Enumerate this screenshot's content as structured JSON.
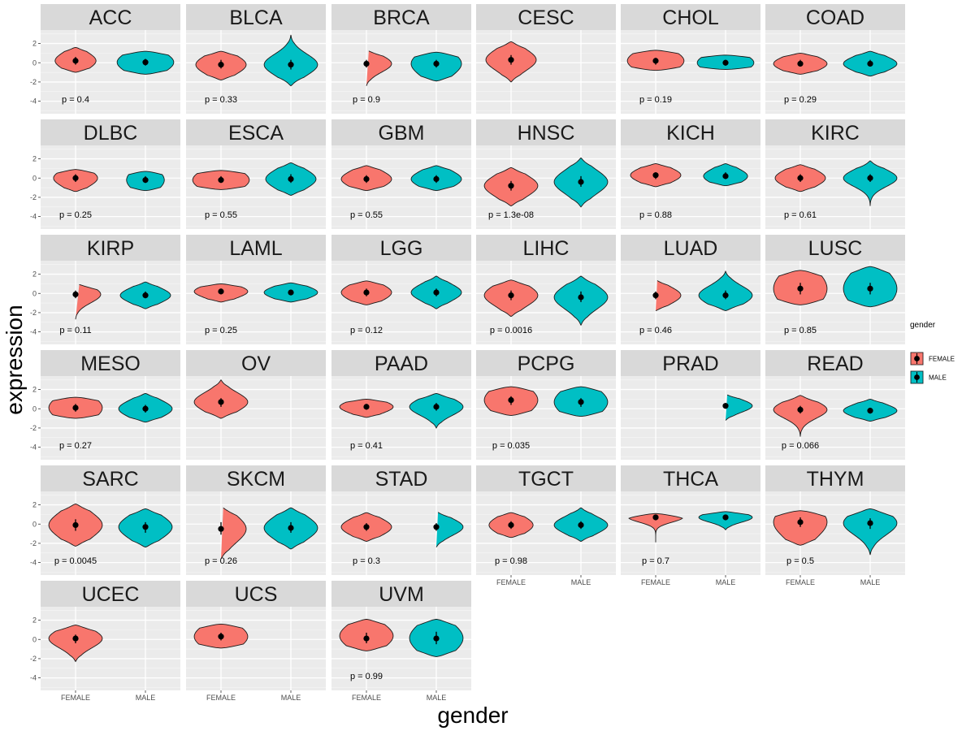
{
  "chart_data": {
    "type": "violin",
    "xlabel": "gender",
    "ylabel": "expression",
    "categories": [
      "FEMALE",
      "MALE"
    ],
    "ylim": [
      -5.3,
      3.4
    ],
    "yticks": [
      -4,
      -2,
      0,
      2
    ],
    "ytick_labels": [
      "-4",
      "-2",
      "0",
      "2"
    ],
    "legend": {
      "title": "gender",
      "position": "right",
      "items": [
        {
          "label": "FEMALE",
          "color": "#F8766D"
        },
        {
          "label": "MALE",
          "color": "#00BFC4"
        }
      ]
    },
    "panels": [
      {
        "name": "ACC",
        "p": "p = 0.4",
        "FEMALE": {
          "lo": -1.0,
          "hi": 1.6,
          "med": 0.2,
          "q1": -0.2,
          "q3": 0.6,
          "w": 0.65,
          "shape": "normal"
        },
        "MALE": {
          "lo": -1.2,
          "hi": 1.2,
          "med": 0.05,
          "q1": -0.3,
          "q3": 0.4,
          "w": 0.9,
          "shape": "wide"
        }
      },
      {
        "name": "BLCA",
        "p": "p = 0.33",
        "FEMALE": {
          "lo": -1.8,
          "hi": 1.2,
          "med": -0.2,
          "q1": -0.6,
          "q3": 0.3,
          "w": 0.8,
          "shape": "normal"
        },
        "MALE": {
          "lo": -2.4,
          "hi": 2.9,
          "med": -0.2,
          "q1": -0.7,
          "q3": 0.3,
          "w": 0.85,
          "shape": "normal"
        }
      },
      {
        "name": "BRCA",
        "p": "p = 0.9",
        "FEMALE": {
          "lo": -2.4,
          "hi": 1.3,
          "med": -0.1,
          "q1": -0.5,
          "q3": 0.3,
          "w": 0.8,
          "shape": "normal"
        },
        "MALE": {
          "lo": -1.9,
          "hi": 1.1,
          "med": -0.1,
          "q1": -0.5,
          "q3": 0.3,
          "w": 0.8,
          "shape": "wide"
        }
      },
      {
        "name": "CESC",
        "p": "",
        "FEMALE": {
          "lo": -2.0,
          "hi": 2.2,
          "med": 0.3,
          "q1": -0.2,
          "q3": 0.8,
          "w": 0.8,
          "shape": "normal"
        }
      },
      {
        "name": "CHOL",
        "p": "p = 0.19",
        "FEMALE": {
          "lo": -0.8,
          "hi": 1.3,
          "med": 0.2,
          "q1": -0.2,
          "q3": 0.5,
          "w": 0.9,
          "shape": "wide"
        },
        "MALE": {
          "lo": -0.7,
          "hi": 0.8,
          "med": 0.0,
          "q1": -0.3,
          "q3": 0.3,
          "w": 0.9,
          "shape": "wide"
        }
      },
      {
        "name": "COAD",
        "p": "p = 0.29",
        "FEMALE": {
          "lo": -1.2,
          "hi": 1.0,
          "med": -0.1,
          "q1": -0.4,
          "q3": 0.3,
          "w": 0.85,
          "shape": "normal"
        },
        "MALE": {
          "lo": -1.4,
          "hi": 1.2,
          "med": -0.1,
          "q1": -0.4,
          "q3": 0.3,
          "w": 0.85,
          "shape": "normal"
        }
      },
      {
        "name": "DLBC",
        "p": "p = 0.25",
        "FEMALE": {
          "lo": -1.4,
          "hi": 0.9,
          "med": 0.0,
          "q1": -0.4,
          "q3": 0.4,
          "w": 0.7,
          "shape": "normal"
        },
        "MALE": {
          "lo": -1.3,
          "hi": 0.7,
          "med": -0.2,
          "q1": -0.5,
          "q3": 0.2,
          "w": 0.6,
          "shape": "wide"
        }
      },
      {
        "name": "ESCA",
        "p": "p = 0.55",
        "FEMALE": {
          "lo": -1.2,
          "hi": 0.8,
          "med": -0.2,
          "q1": -0.5,
          "q3": 0.2,
          "w": 0.9,
          "shape": "wide"
        },
        "MALE": {
          "lo": -1.8,
          "hi": 1.6,
          "med": -0.1,
          "q1": -0.5,
          "q3": 0.4,
          "w": 0.8,
          "shape": "normal"
        }
      },
      {
        "name": "GBM",
        "p": "p = 0.55",
        "FEMALE": {
          "lo": -1.3,
          "hi": 1.3,
          "med": -0.1,
          "q1": -0.5,
          "q3": 0.3,
          "w": 0.8,
          "shape": "normal"
        },
        "MALE": {
          "lo": -1.3,
          "hi": 1.3,
          "med": -0.1,
          "q1": -0.5,
          "q3": 0.3,
          "w": 0.8,
          "shape": "normal"
        }
      },
      {
        "name": "HNSC",
        "p": "p = 1.3e-08",
        "FEMALE": {
          "lo": -2.9,
          "hi": 1.1,
          "med": -0.8,
          "q1": -1.3,
          "q3": -0.3,
          "w": 0.85,
          "shape": "normal"
        },
        "MALE": {
          "lo": -3.0,
          "hi": 2.1,
          "med": -0.4,
          "q1": -0.9,
          "q3": 0.2,
          "w": 0.85,
          "shape": "normal"
        }
      },
      {
        "name": "KICH",
        "p": "p = 0.88",
        "FEMALE": {
          "lo": -0.9,
          "hi": 1.5,
          "med": 0.3,
          "q1": -0.1,
          "q3": 0.6,
          "w": 0.8,
          "shape": "normal"
        },
        "MALE": {
          "lo": -0.8,
          "hi": 1.5,
          "med": 0.2,
          "q1": -0.1,
          "q3": 0.6,
          "w": 0.7,
          "shape": "normal"
        }
      },
      {
        "name": "KIRC",
        "p": "p = 0.61",
        "FEMALE": {
          "lo": -1.4,
          "hi": 1.4,
          "med": 0.0,
          "q1": -0.4,
          "q3": 0.4,
          "w": 0.8,
          "shape": "normal"
        },
        "MALE": {
          "lo": -2.9,
          "hi": 1.8,
          "med": 0.0,
          "q1": -0.4,
          "q3": 0.4,
          "w": 0.85,
          "shape": "normal"
        }
      },
      {
        "name": "KIRP",
        "p": "p = 0.11",
        "FEMALE": {
          "lo": -2.7,
          "hi": 1.0,
          "med": -0.1,
          "q1": -0.5,
          "q3": 0.3,
          "w": 0.8,
          "shape": "normal"
        },
        "MALE": {
          "lo": -1.6,
          "hi": 1.2,
          "med": -0.2,
          "q1": -0.5,
          "q3": 0.2,
          "w": 0.8,
          "shape": "normal"
        }
      },
      {
        "name": "LAML",
        "p": "p = 0.25",
        "FEMALE": {
          "lo": -0.9,
          "hi": 1.0,
          "med": 0.2,
          "q1": -0.1,
          "q3": 0.5,
          "w": 0.85,
          "shape": "normal"
        },
        "MALE": {
          "lo": -0.9,
          "hi": 1.1,
          "med": 0.1,
          "q1": -0.2,
          "q3": 0.4,
          "w": 0.85,
          "shape": "normal"
        }
      },
      {
        "name": "LGG",
        "p": "p = 0.12",
        "FEMALE": {
          "lo": -1.2,
          "hi": 1.3,
          "med": 0.1,
          "q1": -0.3,
          "q3": 0.5,
          "w": 0.8,
          "shape": "normal"
        },
        "MALE": {
          "lo": -1.6,
          "hi": 1.8,
          "med": 0.1,
          "q1": -0.3,
          "q3": 0.5,
          "w": 0.8,
          "shape": "normal"
        }
      },
      {
        "name": "LIHC",
        "p": "p = 0.0016",
        "FEMALE": {
          "lo": -2.4,
          "hi": 1.4,
          "med": -0.2,
          "q1": -0.7,
          "q3": 0.3,
          "w": 0.85,
          "shape": "normal"
        },
        "MALE": {
          "lo": -3.3,
          "hi": 1.8,
          "med": -0.4,
          "q1": -0.9,
          "q3": 0.2,
          "w": 0.85,
          "shape": "normal"
        }
      },
      {
        "name": "LUAD",
        "p": "p = 0.46",
        "FEMALE": {
          "lo": -1.8,
          "hi": 1.4,
          "med": -0.2,
          "q1": -0.6,
          "q3": 0.2,
          "w": 0.8,
          "shape": "normal"
        },
        "MALE": {
          "lo": -1.8,
          "hi": 2.3,
          "med": -0.2,
          "q1": -0.6,
          "q3": 0.3,
          "w": 0.85,
          "shape": "normal"
        }
      },
      {
        "name": "LUSC",
        "p": "p = 0.85",
        "FEMALE": {
          "lo": -1.2,
          "hi": 2.4,
          "med": 0.5,
          "q1": -0.1,
          "q3": 1.1,
          "w": 0.85,
          "shape": "wide"
        },
        "MALE": {
          "lo": -1.4,
          "hi": 2.8,
          "med": 0.5,
          "q1": -0.1,
          "q3": 1.1,
          "w": 0.85,
          "shape": "wide"
        }
      },
      {
        "name": "MESO",
        "p": "p = 0.27",
        "FEMALE": {
          "lo": -1.0,
          "hi": 1.2,
          "med": 0.1,
          "q1": -0.3,
          "q3": 0.5,
          "w": 0.85,
          "shape": "wide"
        },
        "MALE": {
          "lo": -1.4,
          "hi": 1.6,
          "med": 0.0,
          "q1": -0.4,
          "q3": 0.4,
          "w": 0.85,
          "shape": "normal"
        }
      },
      {
        "name": "OV",
        "p": "",
        "FEMALE": {
          "lo": -1.0,
          "hi": 3.0,
          "med": 0.7,
          "q1": 0.2,
          "q3": 1.1,
          "w": 0.85,
          "shape": "normal"
        }
      },
      {
        "name": "PAAD",
        "p": "p = 0.41",
        "FEMALE": {
          "lo": -0.9,
          "hi": 1.0,
          "med": 0.2,
          "q1": -0.1,
          "q3": 0.5,
          "w": 0.85,
          "shape": "normal"
        },
        "MALE": {
          "lo": -2.0,
          "hi": 1.6,
          "med": 0.2,
          "q1": -0.2,
          "q3": 0.6,
          "w": 0.85,
          "shape": "normal"
        }
      },
      {
        "name": "PCPG",
        "p": "p = 0.035",
        "FEMALE": {
          "lo": -0.7,
          "hi": 2.3,
          "med": 0.9,
          "q1": 0.4,
          "q3": 1.3,
          "w": 0.85,
          "shape": "wide"
        },
        "MALE": {
          "lo": -0.8,
          "hi": 2.3,
          "med": 0.7,
          "q1": 0.2,
          "q3": 1.1,
          "w": 0.85,
          "shape": "wide"
        }
      },
      {
        "name": "PRAD",
        "p": "",
        "MALE": {
          "lo": -1.2,
          "hi": 1.5,
          "med": 0.3,
          "q1": 0.0,
          "q3": 0.6,
          "w": 0.85,
          "shape": "normal"
        }
      },
      {
        "name": "READ",
        "p": "p = 0.066",
        "FEMALE": {
          "lo": -2.9,
          "hi": 1.4,
          "med": -0.1,
          "q1": -0.5,
          "q3": 0.3,
          "w": 0.85,
          "shape": "normal"
        },
        "MALE": {
          "lo": -1.3,
          "hi": 1.0,
          "med": -0.2,
          "q1": -0.5,
          "q3": 0.1,
          "w": 0.85,
          "shape": "normal"
        }
      },
      {
        "name": "SARC",
        "p": "p = 0.0045",
        "FEMALE": {
          "lo": -2.3,
          "hi": 2.1,
          "med": -0.1,
          "q1": -0.7,
          "q3": 0.5,
          "w": 0.85,
          "shape": "normal"
        },
        "MALE": {
          "lo": -2.4,
          "hi": 1.6,
          "med": -0.3,
          "q1": -0.9,
          "q3": 0.2,
          "w": 0.85,
          "shape": "normal"
        }
      },
      {
        "name": "SKCM",
        "p": "p = 0.26",
        "FEMALE": {
          "lo": -3.6,
          "hi": 1.8,
          "med": -0.5,
          "q1": -1.1,
          "q3": 0.2,
          "w": 0.8,
          "shape": "normal"
        },
        "MALE": {
          "lo": -2.6,
          "hi": 1.7,
          "med": -0.4,
          "q1": -0.9,
          "q3": 0.2,
          "w": 0.85,
          "shape": "normal"
        }
      },
      {
        "name": "STAD",
        "p": "p = 0.3",
        "FEMALE": {
          "lo": -1.8,
          "hi": 1.2,
          "med": -0.3,
          "q1": -0.7,
          "q3": 0.1,
          "w": 0.8,
          "shape": "normal"
        },
        "MALE": {
          "lo": -2.4,
          "hi": 1.3,
          "med": -0.3,
          "q1": -0.7,
          "q3": 0.1,
          "w": 0.85,
          "shape": "normal"
        }
      },
      {
        "name": "TGCT",
        "p": "p = 0.98",
        "FEMALE": {
          "lo": -1.4,
          "hi": 1.2,
          "med": -0.1,
          "q1": -0.5,
          "q3": 0.3,
          "w": 0.7,
          "shape": "normal"
        },
        "MALE": {
          "lo": -1.8,
          "hi": 1.7,
          "med": -0.1,
          "q1": -0.5,
          "q3": 0.3,
          "w": 0.85,
          "shape": "normal"
        }
      },
      {
        "name": "THCA",
        "p": "p = 0.7",
        "FEMALE": {
          "lo": -1.9,
          "hi": 1.1,
          "med": 0.7,
          "q1": 0.4,
          "q3": 0.9,
          "w": 0.85,
          "shape": "top"
        },
        "MALE": {
          "lo": -0.6,
          "hi": 1.3,
          "med": 0.7,
          "q1": 0.4,
          "q3": 0.9,
          "w": 0.85,
          "shape": "top"
        }
      },
      {
        "name": "THYM",
        "p": "p = 0.5",
        "FEMALE": {
          "lo": -2.2,
          "hi": 1.4,
          "med": 0.2,
          "q1": -0.3,
          "q3": 0.7,
          "w": 0.85,
          "shape": "wide"
        },
        "MALE": {
          "lo": -3.2,
          "hi": 1.6,
          "med": 0.1,
          "q1": -0.5,
          "q3": 0.6,
          "w": 0.85,
          "shape": "normal"
        }
      },
      {
        "name": "UCEC",
        "p": "",
        "FEMALE": {
          "lo": -2.3,
          "hi": 1.5,
          "med": 0.1,
          "q1": -0.4,
          "q3": 0.5,
          "w": 0.85,
          "shape": "normal"
        }
      },
      {
        "name": "UCS",
        "p": "",
        "FEMALE": {
          "lo": -0.9,
          "hi": 1.6,
          "med": 0.3,
          "q1": -0.1,
          "q3": 0.7,
          "w": 0.85,
          "shape": "wide"
        }
      },
      {
        "name": "UVM",
        "p": "p = 0.99",
        "FEMALE": {
          "lo": -1.2,
          "hi": 2.1,
          "med": 0.1,
          "q1": -0.4,
          "q3": 0.7,
          "w": 0.85,
          "shape": "flat"
        },
        "MALE": {
          "lo": -1.8,
          "hi": 2.1,
          "med": 0.1,
          "q1": -0.5,
          "q3": 0.8,
          "w": 0.85,
          "shape": "flat"
        }
      }
    ]
  }
}
